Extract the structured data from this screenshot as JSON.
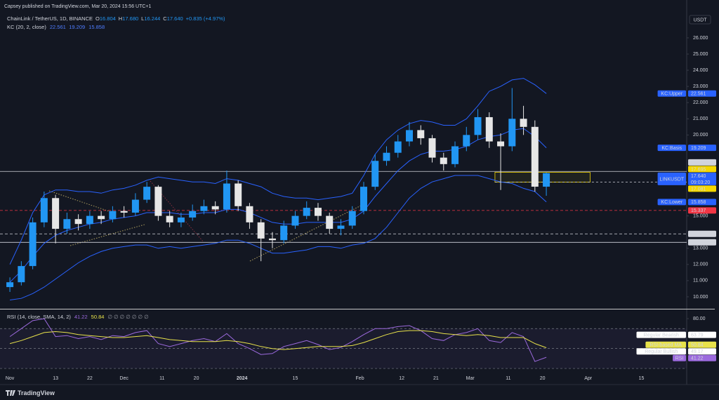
{
  "page": {
    "publisher_line": "Capsey published on TradingView.com, Mar 20, 2024 15:56 UTC+1",
    "brand": "TradingView"
  },
  "chart_data": [
    {
      "type": "candlestick",
      "title": "ChainLink / TetherUS, 1D, BINANCE",
      "ohlc_legend": [
        {
          "key": "O",
          "value": "16.804"
        },
        {
          "key": "H",
          "value": "17.680"
        },
        {
          "key": "L",
          "value": "16.244"
        },
        {
          "key": "C",
          "value": "17.640"
        }
      ],
      "change": "+0.835 (+4.97%)",
      "currency": "USDT",
      "indicator": "KC (20, 2, close)",
      "x": [
        0,
        3,
        6,
        9,
        12,
        15,
        18,
        21,
        24,
        27,
        30,
        33,
        36,
        39,
        42,
        45,
        48,
        51,
        54,
        57,
        60,
        63,
        66,
        69,
        72,
        75,
        78,
        81,
        84,
        87,
        90,
        93,
        96,
        99,
        102,
        105,
        108,
        111,
        114,
        117,
        120,
        123,
        126,
        129,
        132,
        135,
        138,
        141
      ],
      "open": [
        10.6,
        10.9,
        11.9,
        14.6,
        16.1,
        14.2,
        14.8,
        14.5,
        15.0,
        14.8,
        15.3,
        15.2,
        16.0,
        16.8,
        15.0,
        14.6,
        14.9,
        15.3,
        15.6,
        15.4,
        17.0,
        15.6,
        14.6,
        13.6,
        13.5,
        14.4,
        15.0,
        15.5,
        15.0,
        14.2,
        14.4,
        15.3,
        16.8,
        18.4,
        18.9,
        19.6,
        20.3,
        19.8,
        18.6,
        18.2,
        19.3,
        20.0,
        21.1,
        19.6,
        19.3,
        21.0,
        20.5,
        16.804
      ],
      "high": [
        11.2,
        12.2,
        14.9,
        16.5,
        16.3,
        15.2,
        15.1,
        15.3,
        15.3,
        15.6,
        15.6,
        16.4,
        17.1,
        16.9,
        15.3,
        15.2,
        15.7,
        16.0,
        15.9,
        17.8,
        17.2,
        15.8,
        14.8,
        14.0,
        14.7,
        15.3,
        15.9,
        15.8,
        15.2,
        14.8,
        15.6,
        17.1,
        18.8,
        19.3,
        20.0,
        20.8,
        20.6,
        20.0,
        18.9,
        19.6,
        20.5,
        21.6,
        21.4,
        20.1,
        22.9,
        21.8,
        20.9,
        17.68
      ],
      "low": [
        10.3,
        10.7,
        11.7,
        14.3,
        13.3,
        13.9,
        14.1,
        14.2,
        14.5,
        14.6,
        14.9,
        15.0,
        15.8,
        14.7,
        14.3,
        14.3,
        14.7,
        15.1,
        15.1,
        15.2,
        15.3,
        14.2,
        12.2,
        13.0,
        13.3,
        14.2,
        14.8,
        14.7,
        13.9,
        13.8,
        14.2,
        15.1,
        16.6,
        18.1,
        18.6,
        19.3,
        19.4,
        18.3,
        17.8,
        18.0,
        19.0,
        19.7,
        19.2,
        16.6,
        19.0,
        20.0,
        16.5,
        16.244
      ],
      "close": [
        10.9,
        11.9,
        14.6,
        16.1,
        14.2,
        14.8,
        14.5,
        15.0,
        14.8,
        15.3,
        15.2,
        16.0,
        16.8,
        15.0,
        14.6,
        14.9,
        15.3,
        15.6,
        15.4,
        17.0,
        15.6,
        14.6,
        13.6,
        13.5,
        14.4,
        15.0,
        15.5,
        15.0,
        14.2,
        14.4,
        15.3,
        16.8,
        18.4,
        18.9,
        19.6,
        20.3,
        19.8,
        18.6,
        18.2,
        19.3,
        20.0,
        21.1,
        19.6,
        19.3,
        21.0,
        20.5,
        16.804,
        17.64
      ],
      "up_color": "#2196f3",
      "down_color": "#e6e6e6",
      "overlays": [
        {
          "name": "KC:Upper",
          "color": "#2962ff",
          "last": 22.561,
          "values": [
            12.0,
            13.5,
            15.2,
            16.3,
            16.6,
            16.6,
            16.5,
            16.5,
            16.4,
            16.6,
            16.7,
            16.9,
            17.2,
            17.4,
            17.3,
            17.2,
            17.1,
            17.1,
            17.0,
            17.3,
            17.2,
            17.0,
            16.8,
            16.4,
            16.2,
            16.1,
            16.1,
            16.0,
            16.1,
            16.2,
            16.4,
            17.5,
            18.8,
            19.7,
            20.3,
            20.7,
            20.9,
            20.8,
            20.6,
            20.6,
            21.0,
            21.8,
            22.7,
            23.0,
            23.4,
            23.5,
            23.1,
            22.561
          ]
        },
        {
          "name": "KC:Basis",
          "color": "#2962ff",
          "last": 19.209,
          "values": [
            10.9,
            11.6,
            12.5,
            13.3,
            13.8,
            14.1,
            14.3,
            14.5,
            14.6,
            14.8,
            14.9,
            15.0,
            15.2,
            15.2,
            15.2,
            15.1,
            15.1,
            15.2,
            15.2,
            15.4,
            15.4,
            15.2,
            14.9,
            14.6,
            14.5,
            14.5,
            14.6,
            14.6,
            14.6,
            14.6,
            14.8,
            15.3,
            16.2,
            17.0,
            17.8,
            18.4,
            18.8,
            19.0,
            19.0,
            19.1,
            19.3,
            19.7,
            19.9,
            20.0,
            20.3,
            20.4,
            19.9,
            19.209
          ]
        },
        {
          "name": "KC:Lower",
          "color": "#2962ff",
          "last": 15.858,
          "values": [
            9.8,
            9.9,
            10.2,
            10.6,
            11.1,
            11.6,
            12.1,
            12.5,
            12.8,
            13.0,
            13.1,
            13.2,
            13.2,
            13.0,
            13.1,
            13.0,
            13.1,
            13.2,
            13.3,
            13.5,
            13.5,
            13.3,
            13.0,
            12.7,
            12.7,
            12.8,
            12.9,
            13.1,
            13.1,
            13.0,
            13.2,
            13.3,
            13.6,
            14.3,
            15.2,
            16.1,
            16.7,
            17.1,
            17.3,
            17.5,
            17.5,
            17.5,
            17.3,
            17.1,
            17.0,
            16.7,
            16.5,
            15.858
          ]
        }
      ],
      "price_badge": {
        "name": "LINKUSDT",
        "value": {
          "value": 17.64,
          "label": "17.640"
        },
        "countdown": "09:03:20",
        "color": "#2962ff"
      },
      "zone": {
        "top": 17.695,
        "bottom": 17.081,
        "x": [
          127.5,
          152.5
        ],
        "color": "#f5d800"
      },
      "levels": [
        {
          "value": 17.748,
          "color": "#d1d4dc",
          "style": "solid"
        },
        {
          "value": 15.337,
          "color": "#f23645",
          "style": "dashed"
        },
        {
          "value": 13.888,
          "color": "#d1d4dc",
          "style": "dashed"
        },
        {
          "value": 13.367,
          "color": "#d1d4dc",
          "style": "solid"
        }
      ],
      "xlim": [
        -2.6,
        177.9
      ],
      "xticks": [
        {
          "value": 0,
          "label": "Nov"
        },
        {
          "value": 12,
          "label": "13"
        },
        {
          "value": 21,
          "label": "22"
        },
        {
          "value": 30,
          "label": "Dec"
        },
        {
          "value": 40,
          "label": "11"
        },
        {
          "value": 49,
          "label": "20"
        },
        {
          "value": 61,
          "label": "2024"
        },
        {
          "value": 75,
          "label": "15"
        },
        {
          "value": 92,
          "label": "Feb"
        },
        {
          "value": 103,
          "label": "12"
        },
        {
          "value": 112,
          "label": "21"
        },
        {
          "value": 121,
          "label": "Mar"
        },
        {
          "value": 131,
          "label": "11"
        },
        {
          "value": 140,
          "label": "20"
        },
        {
          "value": 152,
          "label": "Apr"
        },
        {
          "value": 166,
          "label": "15"
        }
      ],
      "ylim": [
        9.26,
        28.34
      ],
      "yticks": [
        {
          "value": 26,
          "label": "26.000"
        },
        {
          "value": 25,
          "label": "25.000"
        },
        {
          "value": 24,
          "label": "24.000"
        },
        {
          "value": 23,
          "label": "23.000"
        },
        {
          "value": 22,
          "label": "22.000"
        },
        {
          "value": 21,
          "label": "21.000"
        },
        {
          "value": 20,
          "label": "20.000"
        },
        {
          "value": 15,
          "label": "15.000"
        },
        {
          "value": 13,
          "label": "13.000"
        },
        {
          "value": 12,
          "label": "12.000"
        },
        {
          "value": 11,
          "label": "11.000"
        },
        {
          "value": 10,
          "label": "10.000"
        }
      ]
    },
    {
      "type": "line",
      "title": "RSI (14, close, SMA, 14, 2)",
      "na_values": "∅ ∅ ∅ ∅ ∅ ∅ ∅",
      "x": [
        0,
        3,
        6,
        9,
        12,
        15,
        18,
        21,
        24,
        27,
        30,
        33,
        36,
        39,
        42,
        45,
        48,
        51,
        54,
        57,
        60,
        63,
        66,
        69,
        72,
        75,
        78,
        81,
        84,
        87,
        90,
        93,
        96,
        99,
        102,
        105,
        108,
        111,
        114,
        117,
        120,
        123,
        126,
        129,
        132,
        135,
        138,
        141
      ],
      "series": [
        {
          "name": "RSI",
          "color": "#9c6ade",
          "last": 41.22,
          "values": [
            62,
            70,
            78,
            80,
            62,
            63,
            60,
            62,
            59,
            63,
            62,
            66,
            68,
            55,
            52,
            55,
            58,
            60,
            57,
            65,
            55,
            50,
            44,
            45,
            52,
            55,
            58,
            54,
            49,
            51,
            57,
            64,
            70,
            70,
            72,
            73,
            68,
            60,
            58,
            64,
            66,
            70,
            58,
            56,
            66,
            62,
            37,
            41.22
          ]
        },
        {
          "name": "RSI-based MA",
          "color": "#e8e24a",
          "last": 50.84,
          "values": [
            55,
            58,
            62,
            66,
            67,
            66,
            64,
            63,
            62,
            61,
            61,
            62,
            63,
            61,
            59,
            58,
            57,
            57,
            57,
            58,
            57,
            55,
            52,
            50,
            49,
            50,
            51,
            52,
            52,
            52,
            53,
            56,
            60,
            64,
            67,
            68,
            68,
            67,
            65,
            64,
            63,
            64,
            63,
            61,
            61,
            61,
            55,
            50.84
          ]
        }
      ],
      "markers": [
        {
          "name": "Regular Bearish",
          "value": 63.79
        },
        {
          "name": "Regular Bullish",
          "value": 49.17
        }
      ],
      "bands": [
        70,
        50,
        30
      ],
      "xlim": [
        -2.6,
        177.9
      ],
      "ylim": [
        23.7,
        88.5
      ],
      "yticks": [
        {
          "value": 80,
          "label": "80.00"
        }
      ]
    }
  ]
}
